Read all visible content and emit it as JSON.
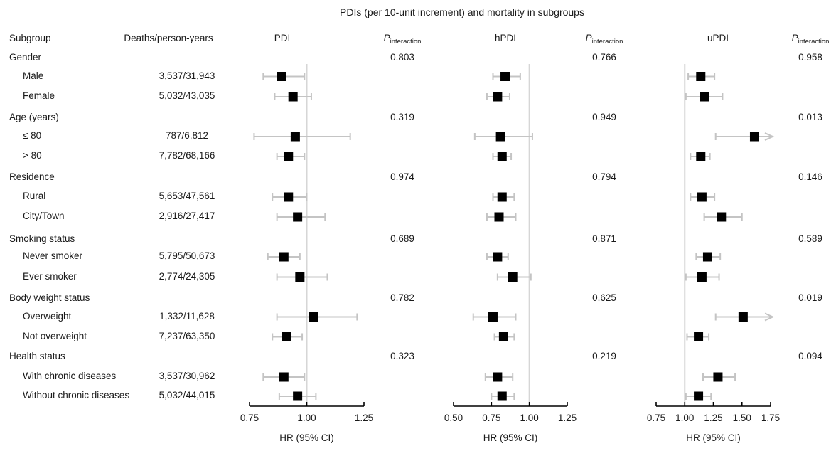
{
  "title": "PDIs (per 10-unit increment) and mortality in subgroups",
  "header": {
    "subgroup": "Subgroup",
    "deaths": "Deaths/person-years",
    "p_label": "P",
    "p_sub": "interaction"
  },
  "colors": {
    "marker": "#000000",
    "ci_line": "#c4c4c4",
    "ref_line": "#d6d6d6",
    "axis": "#000000",
    "text": "#1a1a1a"
  },
  "chart_data": {
    "type": "forest",
    "title": "PDIs (per 10-unit increment) and mortality in subgroups",
    "xlabel": "HR (95% CI)",
    "ref_line": 1.0,
    "legend_position": "none",
    "grid": false,
    "panels": [
      {
        "name": "PDI",
        "xlim": [
          0.75,
          1.25
        ],
        "tick_values": [
          0.75,
          1.0,
          1.25
        ],
        "ticks": [
          "0.75",
          "1.00",
          "1.25"
        ]
      },
      {
        "name": "hPDI",
        "xlim": [
          0.5,
          1.25
        ],
        "tick_values": [
          0.5,
          0.75,
          1.0,
          1.25
        ],
        "ticks": [
          "0.50",
          "0.75",
          "1.00",
          "1.25"
        ]
      },
      {
        "name": "uPDI",
        "xlim": [
          0.75,
          1.75
        ],
        "tick_values": [
          0.75,
          1.0,
          1.25,
          1.5,
          1.75
        ],
        "ticks": [
          "0.75",
          "1.00",
          "1.25",
          "1.50",
          "1.75"
        ]
      }
    ],
    "rows": [
      {
        "type": "group",
        "label": "Gender",
        "p_interaction": [
          "0.803",
          "0.766",
          "0.958"
        ]
      },
      {
        "type": "item",
        "label": "Male",
        "deaths": "3,537/31,943",
        "estimates": [
          {
            "hr": 0.89,
            "lo": 0.81,
            "hi": 0.99
          },
          {
            "hr": 0.84,
            "lo": 0.76,
            "hi": 0.94
          },
          {
            "hr": 1.14,
            "lo": 1.03,
            "hi": 1.26
          }
        ]
      },
      {
        "type": "item",
        "label": "Female",
        "deaths": "5,032/43,035",
        "estimates": [
          {
            "hr": 0.94,
            "lo": 0.86,
            "hi": 1.02
          },
          {
            "hr": 0.79,
            "lo": 0.72,
            "hi": 0.87
          },
          {
            "hr": 1.17,
            "lo": 1.01,
            "hi": 1.33
          }
        ]
      },
      {
        "type": "group",
        "label": "Age (years)",
        "p_interaction": [
          "0.319",
          "0.949",
          "0.013"
        ]
      },
      {
        "type": "item",
        "label": "≤ 80",
        "deaths": "787/6,812",
        "estimates": [
          {
            "hr": 0.95,
            "lo": 0.77,
            "hi": 1.19
          },
          {
            "hr": 0.81,
            "lo": 0.64,
            "hi": 1.02
          },
          {
            "hr": 1.61,
            "lo": 1.27,
            "hi": null,
            "arrow": true
          }
        ]
      },
      {
        "type": "item",
        "label": "> 80",
        "deaths": "7,782/68,166",
        "estimates": [
          {
            "hr": 0.92,
            "lo": 0.87,
            "hi": 0.99
          },
          {
            "hr": 0.82,
            "lo": 0.76,
            "hi": 0.88
          },
          {
            "hr": 1.14,
            "lo": 1.05,
            "hi": 1.22
          }
        ]
      },
      {
        "type": "group",
        "label": "Residence",
        "p_interaction": [
          "0.974",
          "0.794",
          "0.146"
        ]
      },
      {
        "type": "item",
        "label": "Rural",
        "deaths": "5,653/47,561",
        "estimates": [
          {
            "hr": 0.92,
            "lo": 0.85,
            "hi": 1.0
          },
          {
            "hr": 0.82,
            "lo": 0.76,
            "hi": 0.9
          },
          {
            "hr": 1.15,
            "lo": 1.05,
            "hi": 1.26
          }
        ]
      },
      {
        "type": "item",
        "label": "City/Town",
        "deaths": "2,916/27,417",
        "estimates": [
          {
            "hr": 0.96,
            "lo": 0.87,
            "hi": 1.08
          },
          {
            "hr": 0.8,
            "lo": 0.72,
            "hi": 0.91
          },
          {
            "hr": 1.32,
            "lo": 1.17,
            "hi": 1.5
          }
        ]
      },
      {
        "type": "group",
        "label": "Smoking status",
        "p_interaction": [
          "0.689",
          "0.871",
          "0.589"
        ]
      },
      {
        "type": "item",
        "label": "Never smoker",
        "deaths": "5,795/50,673",
        "estimates": [
          {
            "hr": 0.9,
            "lo": 0.83,
            "hi": 0.97
          },
          {
            "hr": 0.79,
            "lo": 0.72,
            "hi": 0.86
          },
          {
            "hr": 1.2,
            "lo": 1.1,
            "hi": 1.31
          }
        ]
      },
      {
        "type": "item",
        "label": "Ever smoker",
        "deaths": "2,774/24,305",
        "estimates": [
          {
            "hr": 0.97,
            "lo": 0.87,
            "hi": 1.09
          },
          {
            "hr": 0.89,
            "lo": 0.79,
            "hi": 1.01
          },
          {
            "hr": 1.15,
            "lo": 1.01,
            "hi": 1.3
          }
        ]
      },
      {
        "type": "group",
        "label": "Body weight status",
        "p_interaction": [
          "0.782",
          "0.625",
          "0.019"
        ]
      },
      {
        "type": "item",
        "label": "Overweight",
        "deaths": "1,332/11,628",
        "estimates": [
          {
            "hr": 1.03,
            "lo": 0.87,
            "hi": 1.22
          },
          {
            "hr": 0.76,
            "lo": 0.63,
            "hi": 0.91
          },
          {
            "hr": 1.51,
            "lo": 1.27,
            "hi": null,
            "arrow": true
          }
        ]
      },
      {
        "type": "item",
        "label": "Not overweight",
        "deaths": "7,237/63,350",
        "estimates": [
          {
            "hr": 0.91,
            "lo": 0.85,
            "hi": 0.98
          },
          {
            "hr": 0.83,
            "lo": 0.77,
            "hi": 0.9
          },
          {
            "hr": 1.12,
            "lo": 1.02,
            "hi": 1.21
          }
        ]
      },
      {
        "type": "group",
        "label": "Health status",
        "p_interaction": [
          "0.323",
          "0.219",
          "0.094"
        ]
      },
      {
        "type": "item",
        "label": "With chronic diseases",
        "deaths": "3,537/30,962",
        "estimates": [
          {
            "hr": 0.9,
            "lo": 0.81,
            "hi": 0.99
          },
          {
            "hr": 0.79,
            "lo": 0.71,
            "hi": 0.89
          },
          {
            "hr": 1.29,
            "lo": 1.16,
            "hi": 1.44
          }
        ]
      },
      {
        "type": "item",
        "label": "Without chronic diseases",
        "deaths": "5,032/44,015",
        "estimates": [
          {
            "hr": 0.96,
            "lo": 0.88,
            "hi": 1.04
          },
          {
            "hr": 0.82,
            "lo": 0.75,
            "hi": 0.9
          },
          {
            "hr": 1.12,
            "lo": 1.01,
            "hi": 1.23
          }
        ]
      }
    ]
  }
}
